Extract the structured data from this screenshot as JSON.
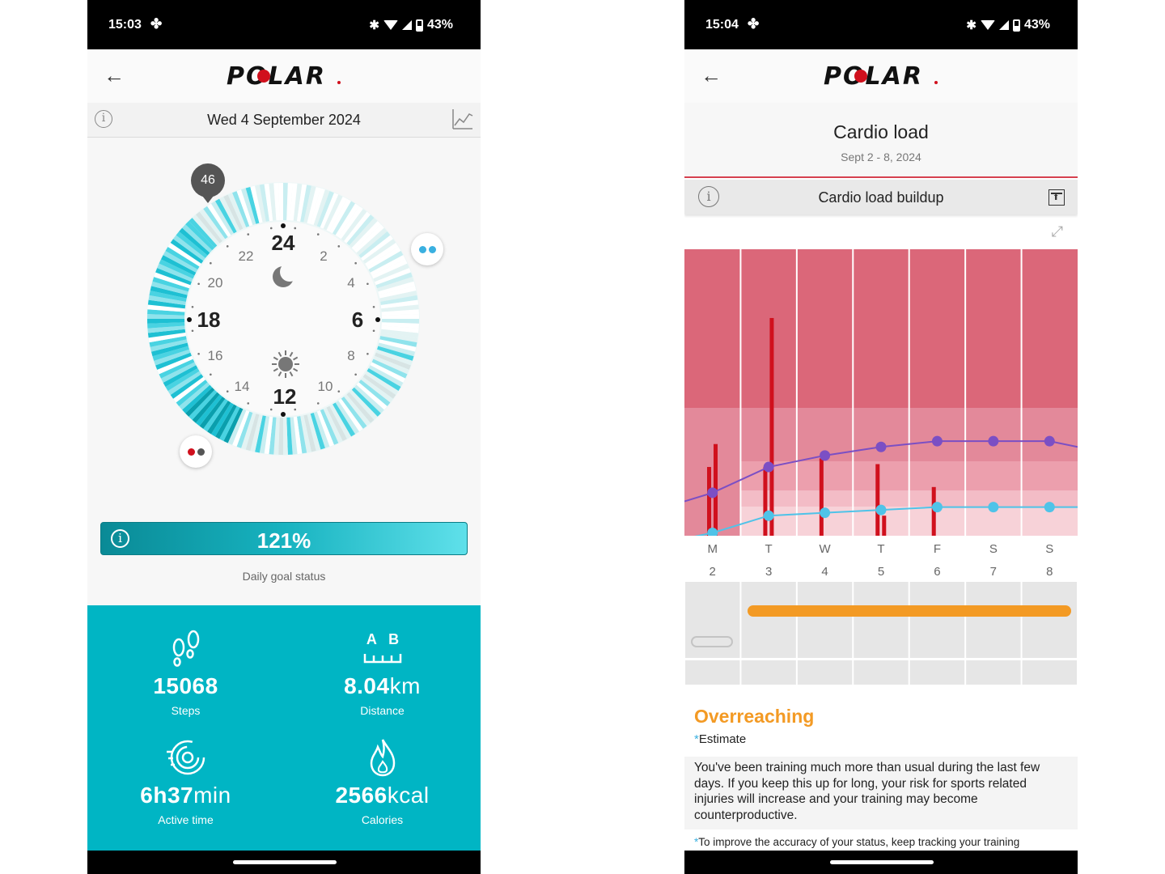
{
  "left": {
    "status": {
      "time": "15:03",
      "battery": "43%"
    },
    "brand": "POLAR",
    "date": "Wed 4 September 2024",
    "activity_badge": "46",
    "clock": {
      "big": [
        "24",
        "6",
        "12",
        "18"
      ],
      "small": [
        "2",
        "4",
        "8",
        "10",
        "14",
        "16",
        "20",
        "22"
      ]
    },
    "goal": {
      "percent": "121%",
      "caption": "Daily goal status"
    },
    "stats": [
      {
        "icon": "footsteps-icon",
        "value": "15068",
        "unit": "",
        "label": "Steps"
      },
      {
        "icon": "distance-icon",
        "value": "8.04",
        "unit": "km",
        "label": "Distance",
        "icon_letters": "A   B"
      },
      {
        "icon": "active-time-icon",
        "value": "6h37",
        "unit": "min",
        "label": "Active time"
      },
      {
        "icon": "flame-icon",
        "value": "2566",
        "unit": "kcal",
        "label": "Calories"
      }
    ],
    "colors": {
      "accent": "#00b5c4",
      "goal_bar": "#17b3c0"
    }
  },
  "right": {
    "status": {
      "time": "15:04",
      "battery": "43%"
    },
    "brand": "POLAR",
    "title": "Cardio load",
    "period": "Sept 2 - 8, 2024",
    "tab_label": "Cardio load buildup",
    "days": [
      {
        "letter": "M",
        "num": "2"
      },
      {
        "letter": "T",
        "num": "3"
      },
      {
        "letter": "W",
        "num": "4"
      },
      {
        "letter": "T",
        "num": "5"
      },
      {
        "letter": "F",
        "num": "6"
      },
      {
        "letter": "S",
        "num": "7"
      },
      {
        "letter": "S",
        "num": "8"
      }
    ],
    "status_title": "Overreaching",
    "estimate": "Estimate",
    "description": "You've been training much more than usual during the last few days. If you keep this up for long, your risk for sports related injuries will increase and your training may become counterproductive.",
    "footnote": "To improve the accuracy of your status, keep tracking your training",
    "colors": {
      "strain": "#7b4fc4",
      "tolerance": "#4fc3e8",
      "training": "#d0101d",
      "status": "#f39a24",
      "zone_top": "#db6779"
    }
  },
  "chart_data": {
    "type": "line",
    "categories": [
      "M 2",
      "T 3",
      "W 4",
      "T 5",
      "F 6",
      "S 7",
      "S 8"
    ],
    "series": [
      {
        "values": [
          15,
          24,
          28,
          31,
          33,
          33,
          33
        ]
      },
      {
        "values": [
          1,
          7,
          8,
          9,
          10,
          10,
          10
        ]
      }
    ],
    "bars": [
      {
        "day": 0,
        "values": [
          24,
          32
        ]
      },
      {
        "day": 1,
        "values": [
          24,
          76
        ]
      },
      {
        "day": 2,
        "values": [
          27
        ]
      },
      {
        "day": 3,
        "values": [
          25,
          7
        ]
      },
      {
        "day": 4,
        "values": [
          17
        ]
      }
    ],
    "ylim": [
      0,
      100
    ]
  }
}
